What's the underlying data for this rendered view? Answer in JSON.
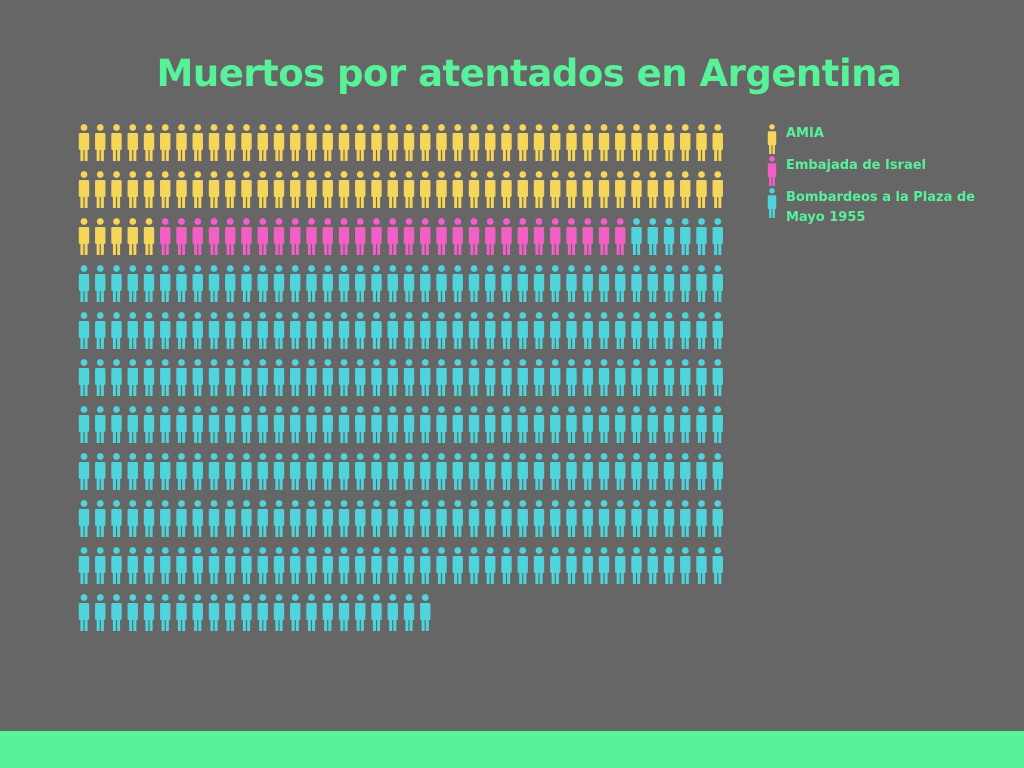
{
  "chart_data": {
    "type": "pictograph",
    "title": "Muertos por atentados en Argentina",
    "unit": "1 figura = 1 muerto",
    "series": [
      {
        "name": "AMIA",
        "value": 85,
        "color": "#f5d65a"
      },
      {
        "name": "Embajada de Israel",
        "value": 29,
        "color": "#f25fc7"
      },
      {
        "name": "Bombardeos a la Plaza de Mayo 1955",
        "value": 308,
        "color": "#4fd4dc"
      }
    ]
  },
  "legend": {
    "items": [
      {
        "label": "AMIA",
        "color": "#f5d65a",
        "icon": "person-icon"
      },
      {
        "label": "Embajada de Israel",
        "color": "#f25fc7",
        "icon": "person-icon"
      },
      {
        "label": "Bombardeos a la Plaza de Mayo 1955",
        "color": "#4fd4dc",
        "icon": "person-icon"
      }
    ]
  },
  "colors": {
    "background": "#666666",
    "accent": "#57f29a"
  }
}
